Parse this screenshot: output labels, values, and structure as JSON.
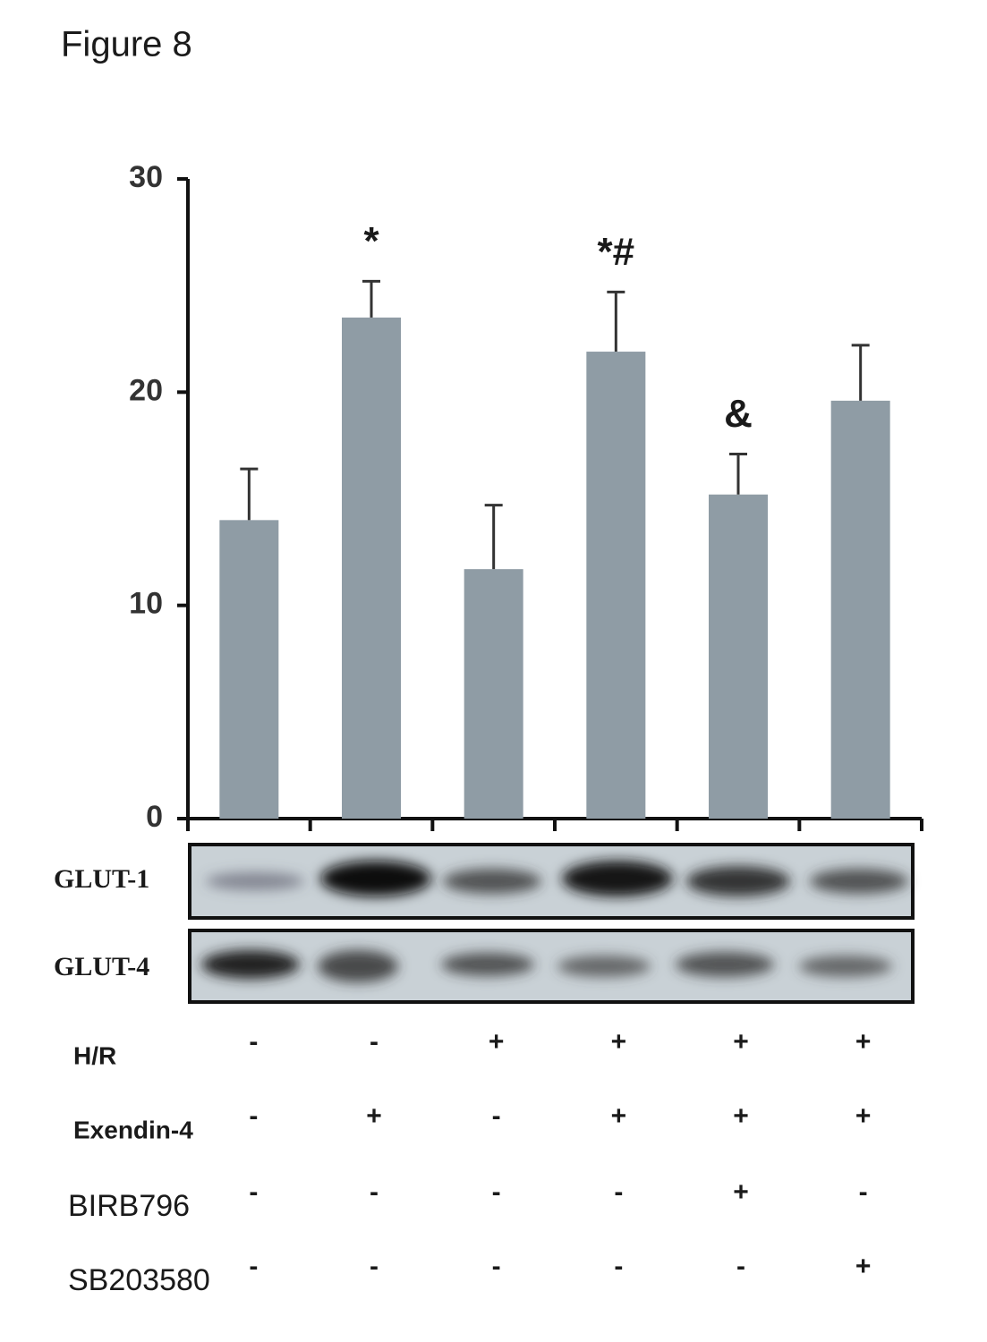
{
  "chart_data": {
    "type": "bar",
    "title": "Figure 8",
    "values": [
      14,
      23.5,
      11.7,
      21.9,
      15.2,
      19.6
    ],
    "errors": [
      2.4,
      1.7,
      3.0,
      2.8,
      1.9,
      2.6
    ],
    "annotations": [
      null,
      "*",
      null,
      "*#",
      "&",
      null
    ],
    "color": "#8f9ca5",
    "ylim": [
      0,
      30
    ],
    "yticks": [
      0,
      10,
      20,
      30
    ],
    "blots": [
      "GLUT-1",
      "GLUT-4"
    ],
    "conditions": [
      {
        "label": "H/R",
        "signs": [
          "-",
          "-",
          "+",
          "+",
          "+",
          "+"
        ]
      },
      {
        "label": "Exendin-4",
        "signs": [
          "-",
          "+",
          "-",
          "+",
          "+",
          "+"
        ]
      },
      {
        "label": "BIRB796",
        "signs": [
          "-",
          "-",
          "-",
          "-",
          "+",
          "-"
        ]
      },
      {
        "label": "SB203580",
        "signs": [
          "-",
          "-",
          "-",
          "-",
          "-",
          "+"
        ]
      }
    ]
  }
}
